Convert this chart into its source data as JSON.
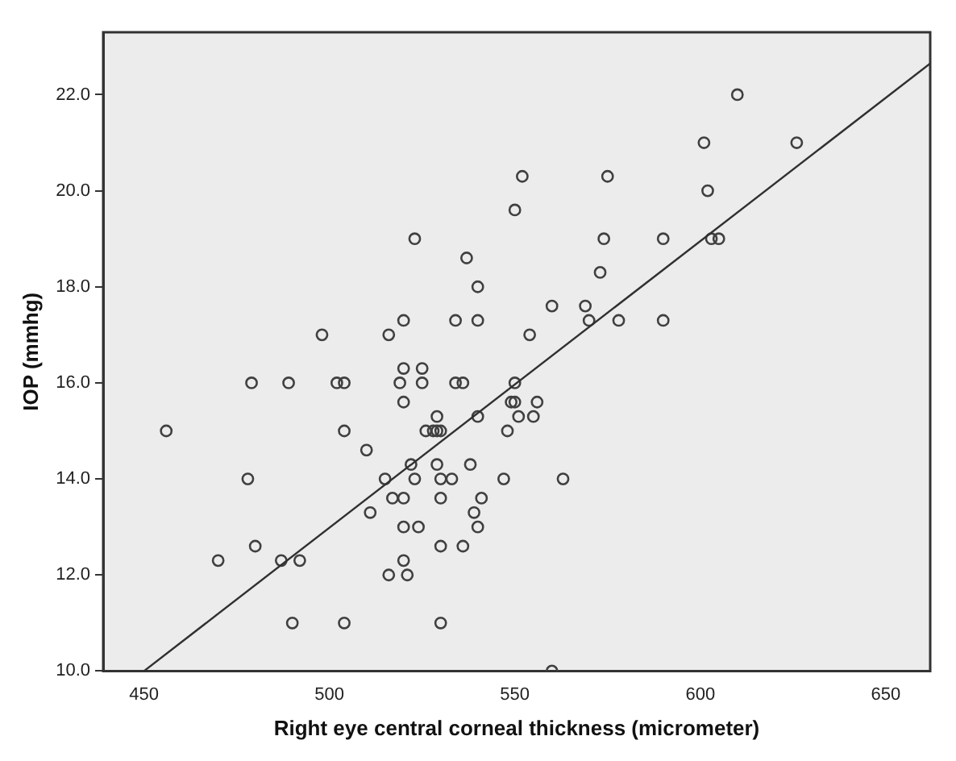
{
  "chart_data": {
    "type": "scatter",
    "xlabel": "Right eye central corneal thickness (micrometer)",
    "ylabel": "IOP (mmhg)",
    "xlim": [
      439,
      662
    ],
    "ylim": [
      10,
      23.3
    ],
    "xticks": [
      450,
      500,
      550,
      600,
      650
    ],
    "yticks": [
      {
        "value": 10,
        "label": "10.0"
      },
      {
        "value": 12,
        "label": "12.0"
      },
      {
        "value": 14,
        "label": "14.0"
      },
      {
        "value": 16,
        "label": "16.0"
      },
      {
        "value": 18,
        "label": "18.0"
      },
      {
        "value": 20,
        "label": "20.0"
      },
      {
        "value": 22,
        "label": "22.0"
      }
    ],
    "grid": false,
    "legend": false,
    "marker": "circle",
    "series": [
      {
        "color": "#404040",
        "x": [
          610,
          601,
          626,
          552,
          575,
          602,
          550,
          523,
          574,
          590,
          603,
          605,
          573,
          537,
          540,
          560,
          569,
          570,
          578,
          590,
          540,
          554,
          498,
          516,
          520,
          534,
          520,
          525,
          479,
          489,
          502,
          504,
          519,
          525,
          534,
          536,
          550,
          520,
          549,
          550,
          556,
          529,
          540,
          551,
          555,
          456,
          504,
          526,
          528,
          529,
          530,
          548,
          510,
          522,
          529,
          538,
          478,
          515,
          523,
          530,
          533,
          547,
          563,
          517,
          520,
          530,
          541,
          511,
          539,
          520,
          524,
          540,
          480,
          530,
          536,
          470,
          487,
          492,
          520,
          516,
          521,
          490,
          504,
          530,
          560
        ],
        "values": [
          22,
          21,
          21,
          20.3,
          20.3,
          20,
          19.6,
          19,
          19,
          19,
          19,
          19,
          18.3,
          18.6,
          18,
          17.6,
          17.6,
          17.3,
          17.3,
          17.3,
          17.3,
          17,
          17,
          17,
          17.3,
          17.3,
          16.3,
          16.3,
          16,
          16,
          16,
          16,
          16,
          16,
          16,
          16,
          16,
          15.6,
          15.6,
          15.6,
          15.6,
          15.3,
          15.3,
          15.3,
          15.3,
          15,
          15,
          15,
          15,
          15,
          15,
          15,
          14.6,
          14.3,
          14.3,
          14.3,
          14,
          14,
          14,
          14,
          14,
          14,
          14,
          13.6,
          13.6,
          13.6,
          13.6,
          13.3,
          13.3,
          13,
          13,
          13,
          12.6,
          12.6,
          12.6,
          12.3,
          12.3,
          12.3,
          12.3,
          12,
          12,
          11,
          11,
          11,
          10
        ]
      },
      {
        "type": "line",
        "color": "#303030",
        "marker": "none",
        "x": [
          450,
          662
        ],
        "values": [
          10,
          22.65
        ]
      }
    ]
  }
}
